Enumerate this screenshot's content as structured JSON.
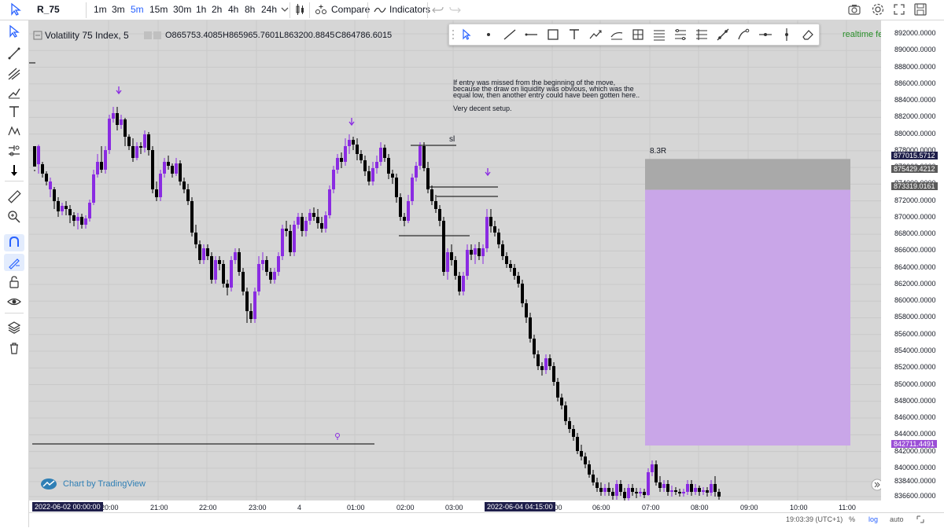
{
  "toolbar": {
    "symbol": "R_75",
    "timeframes": [
      "1m",
      "3m",
      "5m",
      "15m",
      "30m",
      "1h",
      "2h",
      "4h",
      "8h",
      "24h"
    ],
    "active_timeframe": "5m",
    "compare_label": "Compare",
    "indicators_label": "Indicators"
  },
  "legend": {
    "title": "Volatility 75 Index, 5",
    "open": "O865753.4085",
    "high": "H865965.7601",
    "low": "L863200.8845",
    "close": "C864786.6015"
  },
  "realtime_label": "realtime feed",
  "annotation": {
    "line1": "If entry was missed from the beginning of the move,",
    "line2": "because the draw on liquidity was obvious, which was the",
    "line3": "equal low, then another entry could have been gotten here..",
    "line4": "Very decent setup."
  },
  "sl_label": "sl",
  "rr_label": "8.3R",
  "price_axis": [
    "892000.0000",
    "890000.0000",
    "888000.0000",
    "886000.0000",
    "884000.0000",
    "882000.0000",
    "880000.0000",
    "878000.0000",
    "876000.0000",
    "874000.0000",
    "872000.0000",
    "870000.0000",
    "868000.0000",
    "866000.0000",
    "864000.0000",
    "862000.0000",
    "860000.0000",
    "858000.0000",
    "856000.0000",
    "854000.0000",
    "852000.0000",
    "850000.0000",
    "848000.0000",
    "846000.0000",
    "844000.0000",
    "842000.0000",
    "840000.0000",
    "838400.0000",
    "836600.0000"
  ],
  "price_tags": {
    "stop": "877015.5712",
    "mid": "875429.4212",
    "entry": "873319.0161",
    "target": "842711.4491"
  },
  "time_axis": [
    "20:00",
    "21:00",
    "22:00",
    "23:00",
    "4",
    "01:00",
    "02:00",
    "03:00",
    "05:00",
    "06:00",
    "07:00",
    "08:00",
    "09:00",
    "10:00",
    "11:00"
  ],
  "time_tags": {
    "start": "2022-06-02 00:00:00",
    "cursor": "2022-06-04 04:15:00"
  },
  "watermark": "Chart by TradingView",
  "bottom": {
    "clock": "19:03:39 (UTC+1)",
    "percent": "%",
    "log": "log",
    "auto": "auto"
  },
  "colors": {
    "bull": "#8a2be2",
    "bear": "#000000",
    "background": "#d6d6d6",
    "target_zone": "#c9a6e8",
    "stop_zone": "#a9a9a9"
  }
}
